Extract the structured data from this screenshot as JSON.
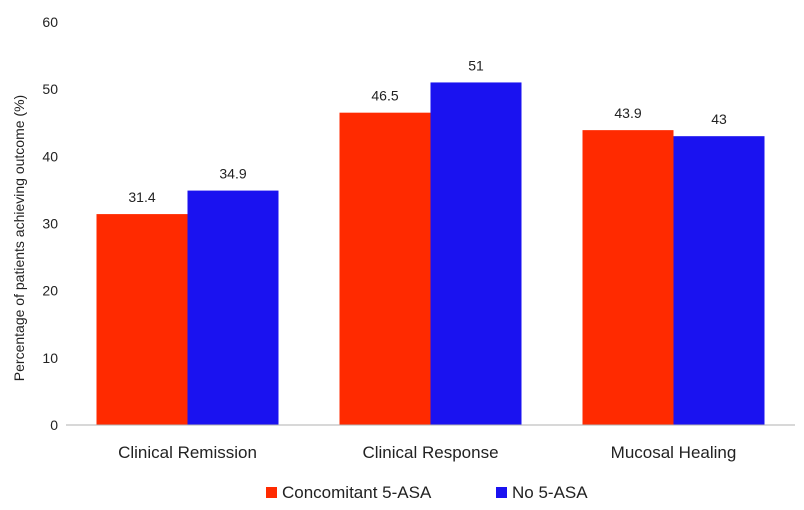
{
  "chart_data": {
    "type": "bar",
    "title": "",
    "xlabel": "",
    "ylabel": "Percentage of patients achieving outcome (%)",
    "ylim": [
      0,
      60
    ],
    "yticks": [
      0,
      10,
      20,
      30,
      40,
      50,
      60
    ],
    "categories": [
      "Clinical Remission",
      "Clinical Response",
      "Mucosal Healing"
    ],
    "series": [
      {
        "name": "Concomitant 5-ASA",
        "color": "#ff2a00",
        "values": [
          31.4,
          46.5,
          43.9
        ],
        "labels": [
          "31.4",
          "46.5",
          "43.9"
        ]
      },
      {
        "name": "No 5-ASA",
        "color": "#1a12f0",
        "values": [
          34.9,
          51,
          43
        ],
        "labels": [
          "34.9",
          "51",
          "43"
        ]
      }
    ],
    "grid": false,
    "legend": "bottom-center"
  }
}
